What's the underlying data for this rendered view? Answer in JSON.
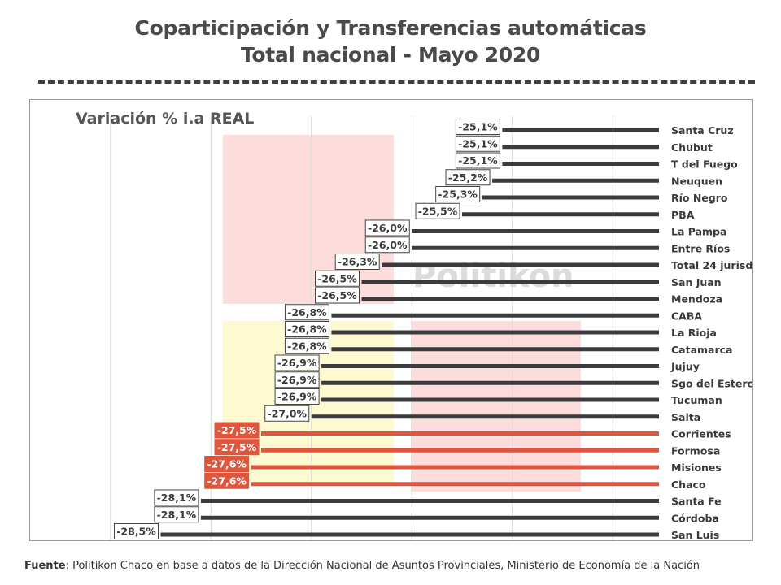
{
  "title_line1": "Coparticipación y Transferencias automáticas",
  "title_line2": "Total nacional - Mayo 2020",
  "source_label": "Fuente",
  "source_text": ": Politikon Chaco en base a datos de la Dirección Nacional de Asuntos Provinciales, Ministerio de Economía de la Nación",
  "watermark": "Politikon",
  "colors": {
    "dark_bar": "#3b3b3d",
    "highlight_bar": "#e0553d",
    "label_border": "#444444"
  },
  "chart_data": {
    "type": "bar",
    "orientation": "horizontal",
    "title": "Variación % i.a REAL",
    "xlim": [
      -29.5,
      -23.5
    ],
    "categories": [
      "Santa Cruz",
      "Chubut",
      "T del Fuego",
      "Neuquen",
      "Río Negro",
      "PBA",
      "La Pampa",
      "Entre Ríos",
      "Total 24 jurisd",
      "San Juan",
      "Mendoza",
      "CABA",
      "La Rioja",
      "Catamarca",
      "Jujuy",
      "Sgo del Estero",
      "Tucuman",
      "Salta",
      "Corrientes",
      "Formosa",
      "Misiones",
      "Chaco",
      "Santa Fe",
      "Córdoba",
      "San Luis"
    ],
    "values": [
      -25.1,
      -25.1,
      -25.1,
      -25.2,
      -25.3,
      -25.5,
      -26.0,
      -26.0,
      -26.3,
      -26.5,
      -26.5,
      -26.8,
      -26.8,
      -26.8,
      -26.9,
      -26.9,
      -26.9,
      -27.0,
      -27.5,
      -27.5,
      -27.6,
      -27.6,
      -28.1,
      -28.1,
      -28.5
    ],
    "labels": [
      "-25,1%",
      "-25,1%",
      "-25,1%",
      "-25,2%",
      "-25,3%",
      "-25,5%",
      "-26,0%",
      "-26,0%",
      "-26,3%",
      "-26,5%",
      "-26,5%",
      "-26,8%",
      "-26,8%",
      "-26,8%",
      "-26,9%",
      "-26,9%",
      "-26,9%",
      "-27,0%",
      "-27,5%",
      "-27,5%",
      "-27,6%",
      "-27,6%",
      "-28,1%",
      "-28,1%",
      "-28,5%"
    ],
    "highlighted": [
      "Corrientes",
      "Formosa",
      "Misiones",
      "Chaco"
    ],
    "grid": true
  }
}
